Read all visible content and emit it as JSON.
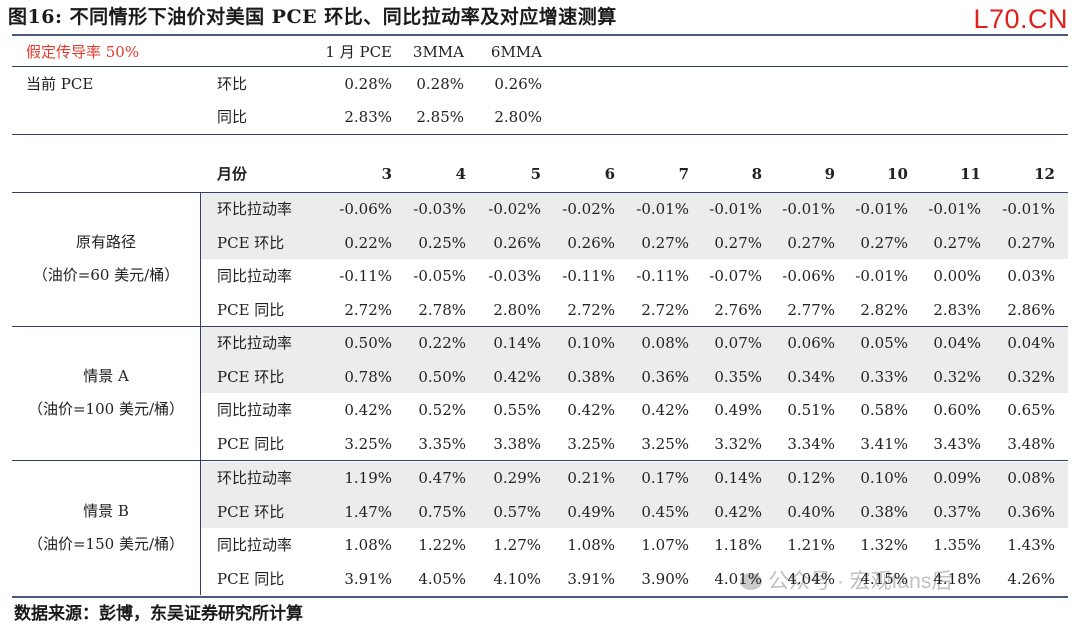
{
  "title": "图16: 不同情形下油价对美国 PCE 环比、同比拉动率及对应增速测算",
  "logo": "L70.CN",
  "assumption": "假定传导率 50%",
  "current_header": [
    "1 月 PCE",
    "3MMA",
    "6MMA"
  ],
  "current": {
    "label": "当前 PCE",
    "rows": [
      {
        "label": "环比",
        "values": [
          "0.28%",
          "0.28%",
          "0.26%"
        ]
      },
      {
        "label": "同比",
        "values": [
          "2.83%",
          "2.85%",
          "2.80%"
        ]
      }
    ]
  },
  "month_header": {
    "label": "月份",
    "months": [
      "3",
      "4",
      "5",
      "6",
      "7",
      "8",
      "9",
      "10",
      "11",
      "12"
    ]
  },
  "scenarios": [
    {
      "name": "原有路径",
      "oil": "（油价=60 美元/桶）",
      "rows": [
        {
          "label": "环比拉动率",
          "values": [
            "-0.06%",
            "-0.03%",
            "-0.02%",
            "-0.02%",
            "-0.01%",
            "-0.01%",
            "-0.01%",
            "-0.01%",
            "-0.01%",
            "-0.01%"
          ]
        },
        {
          "label": "PCE 环比",
          "values": [
            "0.22%",
            "0.25%",
            "0.26%",
            "0.26%",
            "0.27%",
            "0.27%",
            "0.27%",
            "0.27%",
            "0.27%",
            "0.27%"
          ]
        },
        {
          "label": "同比拉动率",
          "values": [
            "-0.11%",
            "-0.05%",
            "-0.03%",
            "-0.11%",
            "-0.11%",
            "-0.07%",
            "-0.06%",
            "-0.01%",
            "0.00%",
            "0.03%"
          ]
        },
        {
          "label": "PCE 同比",
          "values": [
            "2.72%",
            "2.78%",
            "2.80%",
            "2.72%",
            "2.72%",
            "2.76%",
            "2.77%",
            "2.82%",
            "2.83%",
            "2.86%"
          ]
        }
      ]
    },
    {
      "name": "情景 A",
      "oil": "（油价=100 美元/桶）",
      "rows": [
        {
          "label": "环比拉动率",
          "values": [
            "0.50%",
            "0.22%",
            "0.14%",
            "0.10%",
            "0.08%",
            "0.07%",
            "0.06%",
            "0.05%",
            "0.04%",
            "0.04%"
          ]
        },
        {
          "label": "PCE 环比",
          "values": [
            "0.78%",
            "0.50%",
            "0.42%",
            "0.38%",
            "0.36%",
            "0.35%",
            "0.34%",
            "0.33%",
            "0.32%",
            "0.32%"
          ]
        },
        {
          "label": "同比拉动率",
          "values": [
            "0.42%",
            "0.52%",
            "0.55%",
            "0.42%",
            "0.42%",
            "0.49%",
            "0.51%",
            "0.58%",
            "0.60%",
            "0.65%"
          ]
        },
        {
          "label": "PCE 同比",
          "values": [
            "3.25%",
            "3.35%",
            "3.38%",
            "3.25%",
            "3.25%",
            "3.32%",
            "3.34%",
            "3.41%",
            "3.43%",
            "3.48%"
          ]
        }
      ]
    },
    {
      "name": "情景 B",
      "oil": "（油价=150 美元/桶）",
      "rows": [
        {
          "label": "环比拉动率",
          "values": [
            "1.19%",
            "0.47%",
            "0.29%",
            "0.21%",
            "0.17%",
            "0.14%",
            "0.12%",
            "0.10%",
            "0.09%",
            "0.08%"
          ]
        },
        {
          "label": "PCE 环比",
          "values": [
            "1.47%",
            "0.75%",
            "0.57%",
            "0.49%",
            "0.45%",
            "0.42%",
            "0.40%",
            "0.38%",
            "0.37%",
            "0.36%"
          ]
        },
        {
          "label": "同比拉动率",
          "values": [
            "1.08%",
            "1.22%",
            "1.27%",
            "1.08%",
            "1.07%",
            "1.18%",
            "1.21%",
            "1.32%",
            "1.35%",
            "1.43%"
          ]
        },
        {
          "label": "PCE 同比",
          "values": [
            "3.91%",
            "4.05%",
            "4.10%",
            "3.91%",
            "3.90%",
            "4.01%",
            "4.04%",
            "4.15%",
            "4.18%",
            "4.26%"
          ]
        }
      ]
    }
  ],
  "source": "数据来源：彭博，东吴证券研究所计算",
  "watermark": "公众号 · 宏观fans后"
}
